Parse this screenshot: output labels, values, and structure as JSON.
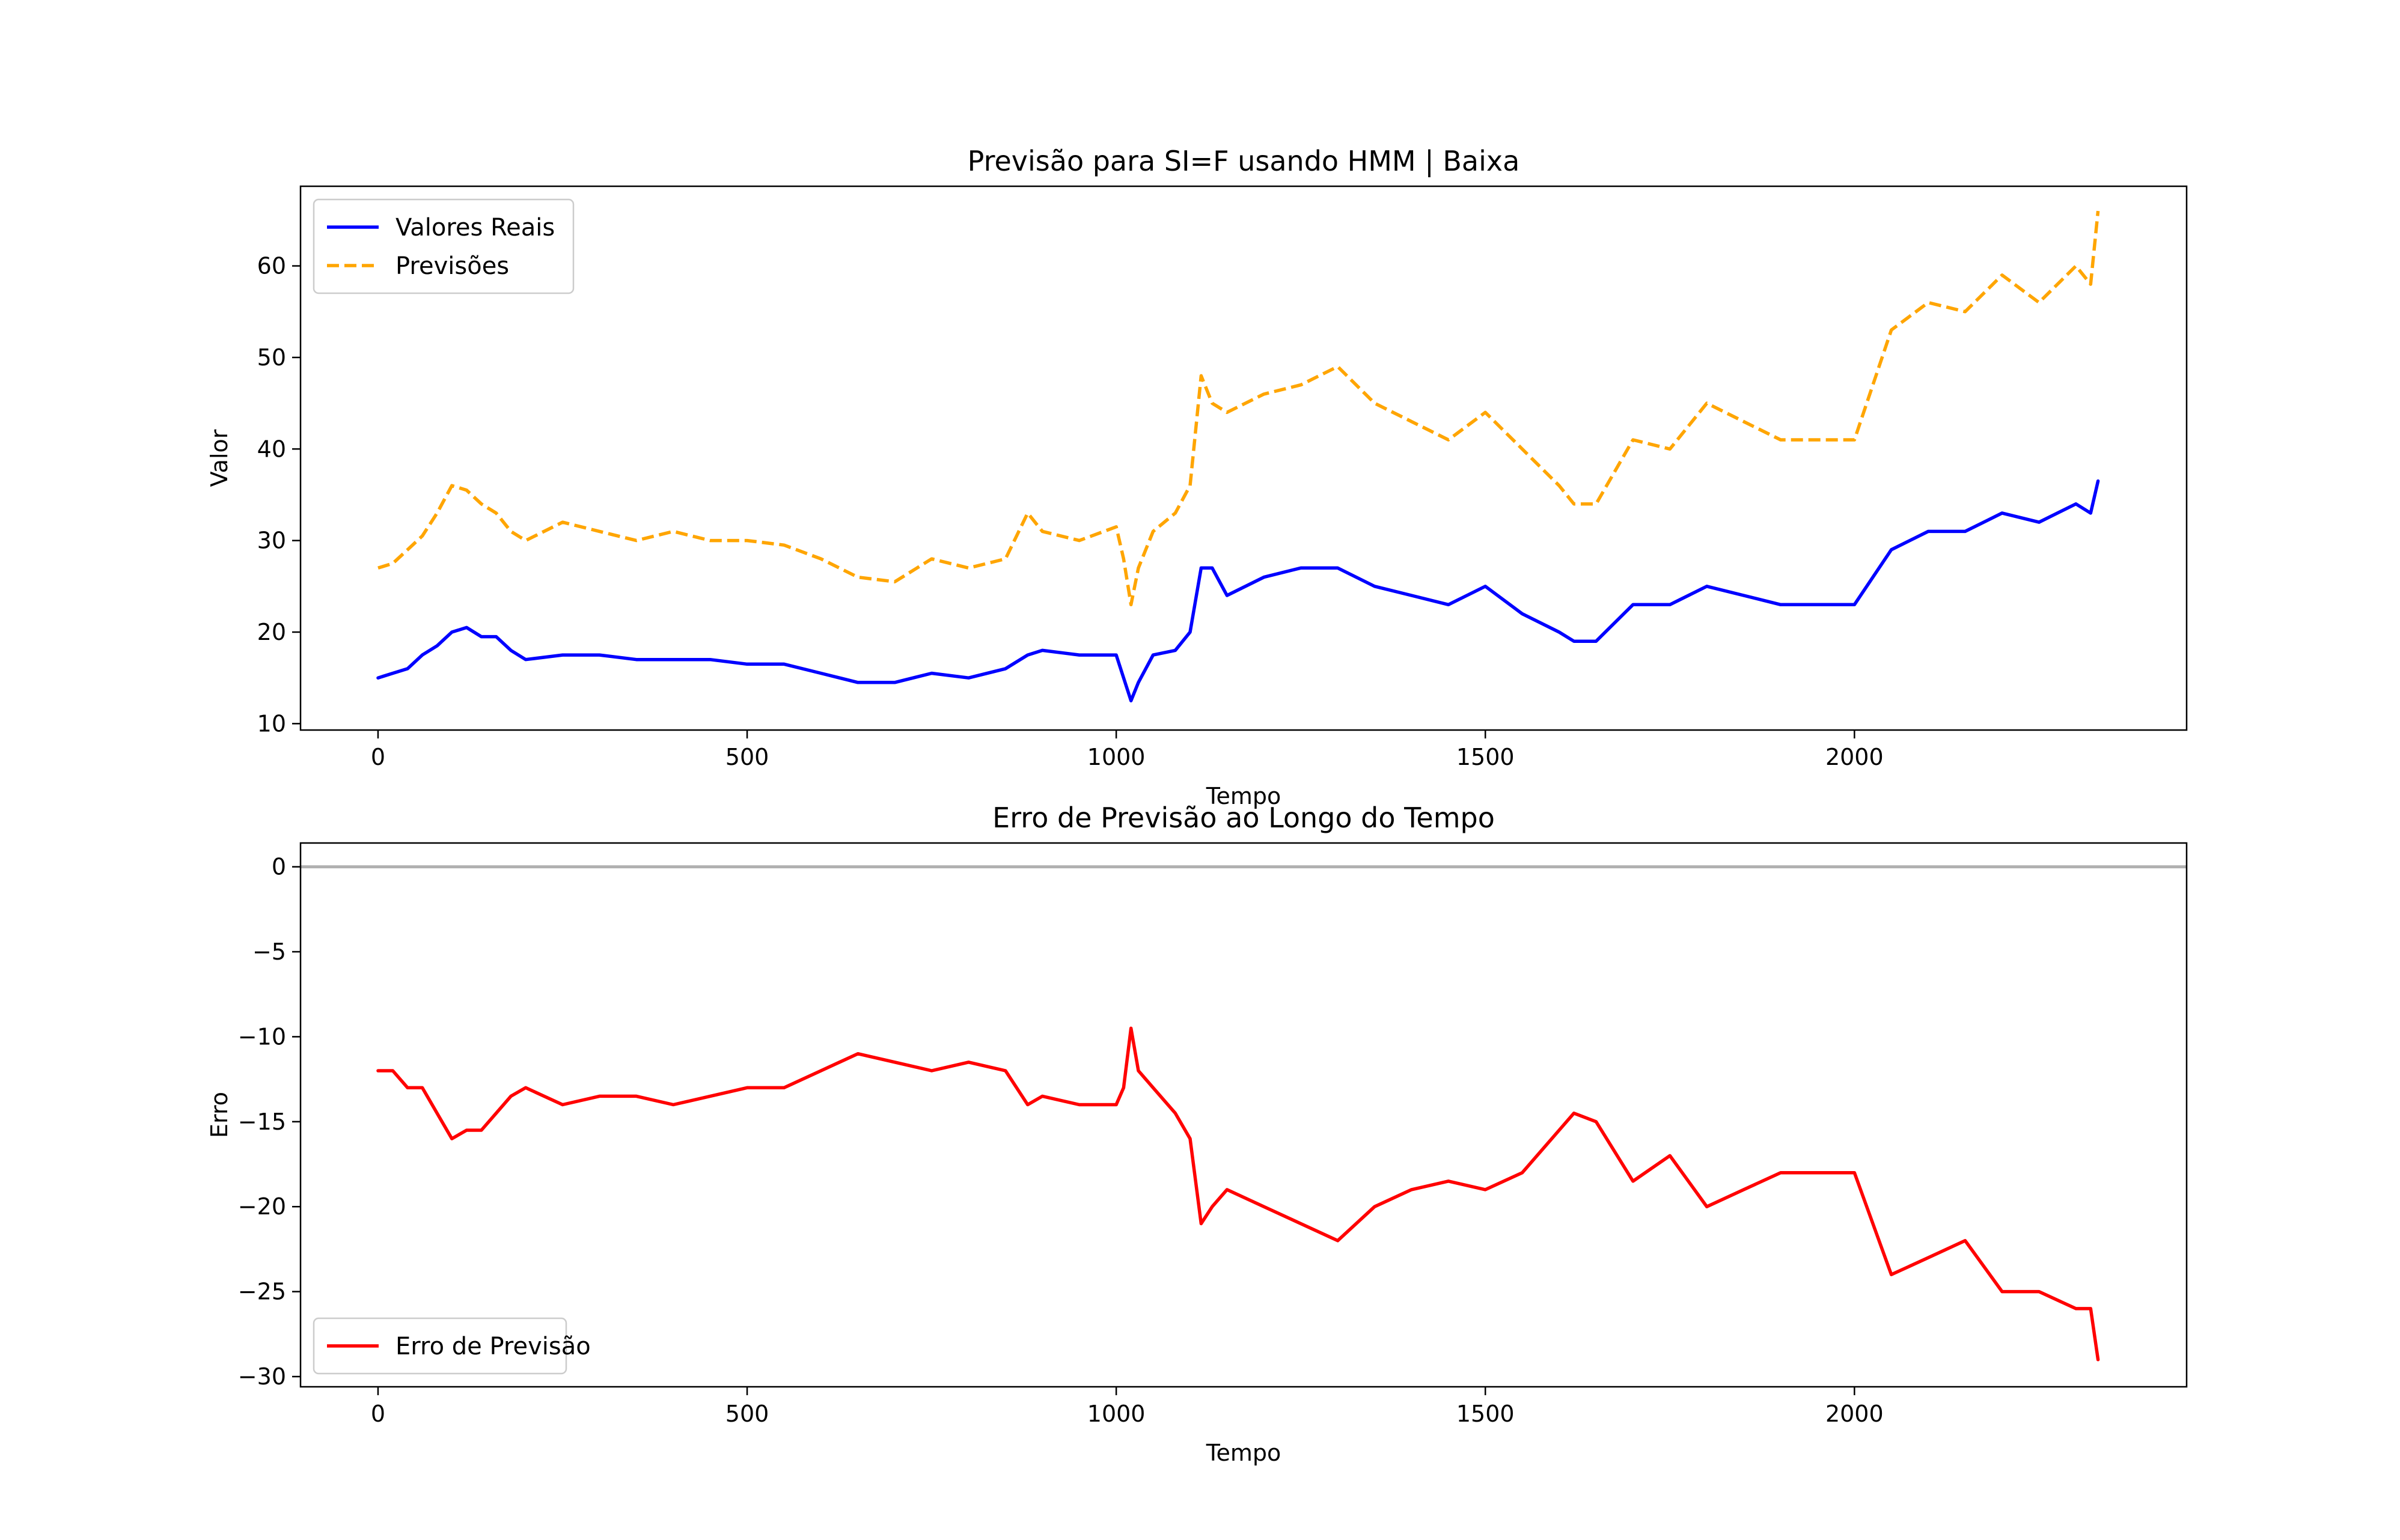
{
  "colors": {
    "real": "#0000ff",
    "forecast": "#ffa500",
    "error": "#ff0000",
    "zero_line": "#b0b0b0"
  },
  "chart_data": [
    {
      "type": "line",
      "title": "Previsão para SI=F usando HMM | Baixa",
      "xlabel": "Tempo",
      "ylabel": "Valor",
      "xlim": [
        -105,
        2450
      ],
      "ylim": [
        9.3,
        68.7
      ],
      "xticks": [
        0,
        500,
        1000,
        1500,
        2000
      ],
      "yticks": [
        10,
        20,
        30,
        40,
        50,
        60
      ],
      "grid": false,
      "legend": "top-left",
      "series": [
        {
          "name": "Valores Reais",
          "style": "solid",
          "color": "#0000ff",
          "x": [
            0,
            20,
            40,
            60,
            80,
            100,
            120,
            140,
            160,
            180,
            200,
            250,
            300,
            350,
            400,
            450,
            500,
            550,
            600,
            650,
            700,
            750,
            800,
            850,
            880,
            900,
            950,
            1000,
            1010,
            1020,
            1030,
            1050,
            1080,
            1100,
            1115,
            1130,
            1150,
            1200,
            1250,
            1300,
            1350,
            1400,
            1450,
            1500,
            1550,
            1600,
            1620,
            1650,
            1700,
            1750,
            1800,
            1850,
            1900,
            1950,
            2000,
            2050,
            2100,
            2150,
            2200,
            2250,
            2300,
            2320,
            2330
          ],
          "y": [
            15,
            15.5,
            16,
            17.5,
            18.5,
            20,
            20.5,
            19.5,
            19.5,
            18,
            17,
            17.5,
            17.5,
            17,
            17,
            17,
            16.5,
            16.5,
            15.5,
            14.5,
            14.5,
            15.5,
            15,
            16,
            17.5,
            18,
            17.5,
            17.5,
            15,
            12.5,
            14.5,
            17.5,
            18,
            20,
            27,
            27,
            24,
            26,
            27,
            27,
            25,
            24,
            23,
            25,
            22,
            20,
            19,
            19,
            23,
            23,
            25,
            24,
            23,
            23,
            23,
            29,
            31,
            31,
            33,
            32,
            34,
            33,
            36.5
          ]
        },
        {
          "name": "Previsões",
          "style": "dashed",
          "color": "#ffa500",
          "x": [
            0,
            20,
            40,
            60,
            80,
            100,
            120,
            140,
            160,
            180,
            200,
            250,
            300,
            350,
            400,
            450,
            500,
            550,
            600,
            650,
            700,
            750,
            800,
            850,
            880,
            900,
            950,
            1000,
            1010,
            1020,
            1030,
            1050,
            1080,
            1100,
            1115,
            1130,
            1150,
            1200,
            1250,
            1300,
            1350,
            1400,
            1450,
            1500,
            1550,
            1600,
            1620,
            1650,
            1700,
            1750,
            1800,
            1850,
            1900,
            1950,
            2000,
            2050,
            2100,
            2150,
            2200,
            2250,
            2300,
            2320,
            2330
          ],
          "y": [
            27,
            27.5,
            29,
            30.5,
            33,
            36,
            35.5,
            34,
            33,
            31,
            30,
            32,
            31,
            30,
            31,
            30,
            30,
            29.5,
            28,
            26,
            25.5,
            28,
            27,
            28,
            33,
            31,
            30,
            31.5,
            28,
            23,
            27,
            31,
            33,
            36,
            48,
            45,
            44,
            46,
            47,
            49,
            45,
            43,
            41,
            44,
            40,
            36,
            34,
            34,
            41,
            40,
            45,
            43,
            41,
            41,
            41,
            53,
            56,
            55,
            59,
            56,
            60,
            58,
            66
          ]
        }
      ]
    },
    {
      "type": "line",
      "title": "Erro de Previsão ao Longo do Tempo",
      "xlabel": "Tempo",
      "ylabel": "Erro",
      "xlim": [
        -105,
        2450
      ],
      "ylim": [
        -30.6,
        1.4
      ],
      "xticks": [
        0,
        500,
        1000,
        1500,
        2000
      ],
      "yticks": [
        0,
        -5,
        -10,
        -15,
        -20,
        -25,
        -30
      ],
      "grid": false,
      "legend": "bottom-left",
      "reference_line": 0,
      "series": [
        {
          "name": "Erro de Previsão",
          "style": "solid",
          "color": "#ff0000",
          "x": [
            0,
            20,
            40,
            60,
            80,
            100,
            120,
            140,
            160,
            180,
            200,
            250,
            300,
            350,
            400,
            450,
            500,
            550,
            600,
            650,
            700,
            750,
            800,
            850,
            880,
            900,
            950,
            1000,
            1010,
            1020,
            1030,
            1050,
            1080,
            1100,
            1115,
            1130,
            1150,
            1200,
            1250,
            1300,
            1350,
            1400,
            1450,
            1500,
            1550,
            1600,
            1620,
            1650,
            1700,
            1750,
            1800,
            1850,
            1900,
            1950,
            2000,
            2050,
            2100,
            2150,
            2200,
            2250,
            2300,
            2320,
            2330
          ],
          "y": [
            -12,
            -12,
            -13,
            -13,
            -14.5,
            -16,
            -15.5,
            -15.5,
            -14.5,
            -13.5,
            -13,
            -14,
            -13.5,
            -13.5,
            -14,
            -13.5,
            -13,
            -13,
            -12,
            -11,
            -11.5,
            -12,
            -11.5,
            -12,
            -14,
            -13.5,
            -14,
            -14,
            -13,
            -9.5,
            -12,
            -13,
            -14.5,
            -16,
            -21,
            -20,
            -19,
            -20,
            -21,
            -22,
            -20,
            -19,
            -18.5,
            -19,
            -18,
            -15.5,
            -14.5,
            -15,
            -18.5,
            -17,
            -20,
            -19,
            -18,
            -18,
            -18,
            -24,
            -23,
            -22,
            -25,
            -25,
            -26,
            -26,
            -29
          ]
        }
      ]
    }
  ]
}
